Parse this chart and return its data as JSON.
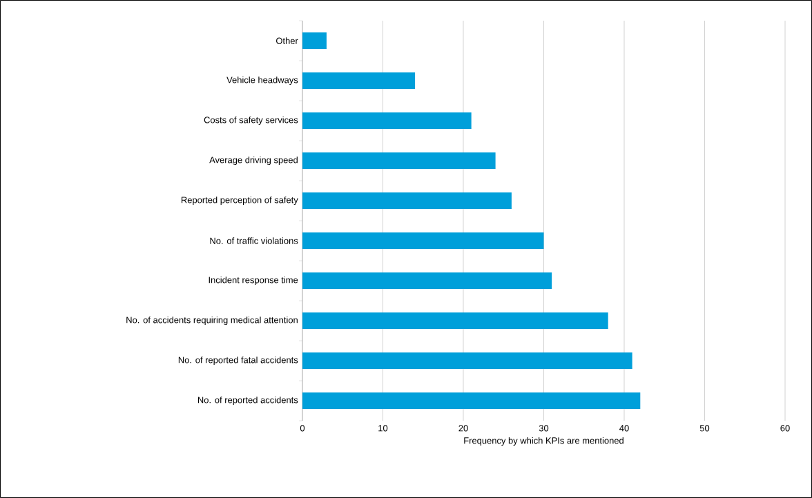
{
  "chart_data": {
    "type": "bar",
    "orientation": "horizontal",
    "xlabel": "Frequency by which KPIs are mentioned",
    "categories": [
      "Other",
      "Vehicle headways",
      "Costs of safety services",
      "Average driving speed",
      "Reported perception of safety",
      "No. of traffic violations",
      "Incident response time",
      "No. of accidents requiring medical attention",
      "No. of reported fatal accidents",
      "No. of reported accidents"
    ],
    "values": [
      3,
      14,
      21,
      24,
      26,
      30,
      31,
      38,
      41,
      42
    ],
    "color": "#009fda",
    "xlim": [
      0,
      60
    ],
    "xticks": [
      0,
      10,
      20,
      30,
      40,
      50,
      60
    ],
    "grid": "x"
  }
}
